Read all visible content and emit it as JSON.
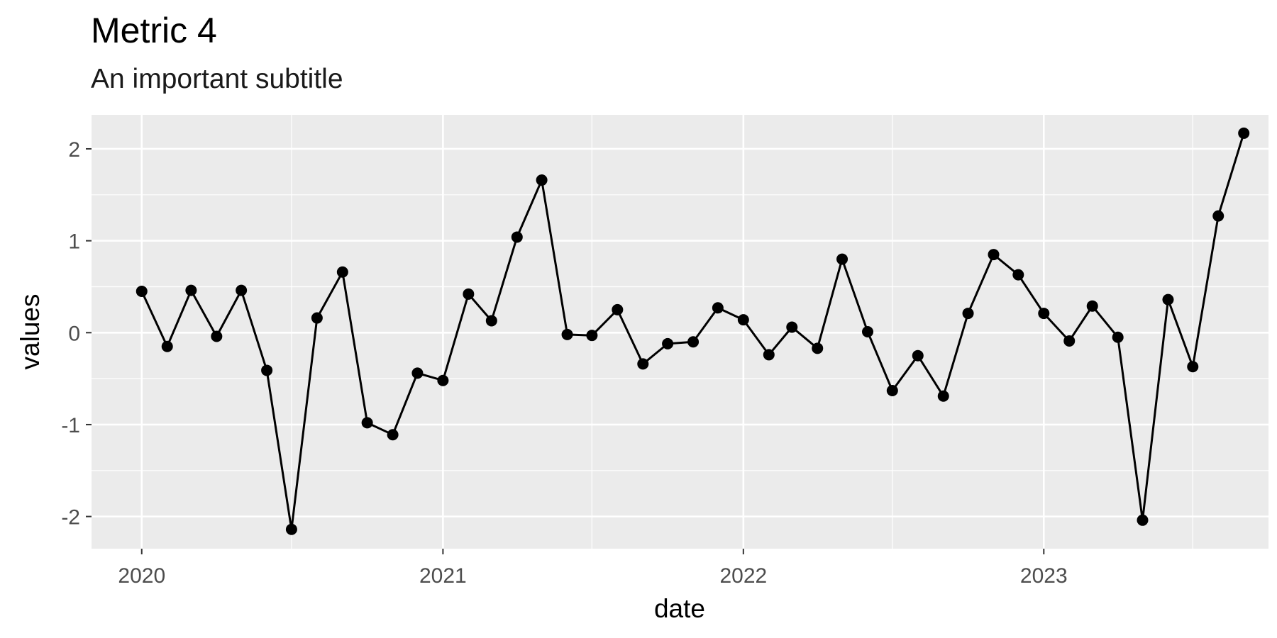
{
  "chart_data": {
    "type": "line",
    "title": "Metric 4",
    "subtitle": "An important subtitle",
    "xlabel": "date",
    "ylabel": "values",
    "x_ticks": [
      "2020",
      "2021",
      "2022",
      "2023"
    ],
    "y_ticks": [
      "2",
      "1",
      "0",
      "-1",
      "-2"
    ],
    "ylim": [
      -2.35,
      2.37
    ],
    "xlim": [
      "2019-11-01",
      "2023-10-01"
    ],
    "grid": true,
    "markers": true,
    "colors": {
      "panel": "#ebebeb",
      "grid": "#ffffff",
      "line": "#000000",
      "tick_text": "#4d4d4d"
    },
    "x": [
      "2020-01-01",
      "2020-02-01",
      "2020-03-01",
      "2020-04-01",
      "2020-05-01",
      "2020-06-01",
      "2020-07-01",
      "2020-08-01",
      "2020-09-01",
      "2020-10-01",
      "2020-11-01",
      "2020-12-01",
      "2021-01-01",
      "2021-02-01",
      "2021-03-01",
      "2021-04-01",
      "2021-05-01",
      "2021-06-01",
      "2021-07-01",
      "2021-08-01",
      "2021-09-01",
      "2021-10-01",
      "2021-11-01",
      "2021-12-01",
      "2022-01-01",
      "2022-02-01",
      "2022-03-01",
      "2022-04-01",
      "2022-05-01",
      "2022-06-01",
      "2022-07-01",
      "2022-08-01",
      "2022-09-01",
      "2022-10-01",
      "2022-11-01",
      "2022-12-01",
      "2023-01-01",
      "2023-02-01",
      "2023-03-01",
      "2023-04-01",
      "2023-05-01",
      "2023-06-01",
      "2023-07-01",
      "2023-08-01",
      "2023-09-01"
    ],
    "series": [
      {
        "values": [
          0.45,
          -0.15,
          0.46,
          -0.04,
          0.46,
          -0.41,
          -2.14,
          0.16,
          0.66,
          -0.98,
          -1.11,
          -0.44,
          -0.52,
          0.42,
          0.13,
          1.04,
          1.66,
          -0.02,
          -0.03,
          0.25,
          -0.34,
          -0.12,
          -0.1,
          0.27,
          0.14,
          -0.24,
          0.06,
          -0.17,
          0.8,
          0.01,
          -0.63,
          -0.25,
          -0.69,
          0.21,
          0.85,
          0.63,
          0.21,
          -0.09,
          0.29,
          -0.05,
          -2.04,
          0.36,
          -0.37,
          1.27,
          2.17
        ]
      }
    ]
  }
}
